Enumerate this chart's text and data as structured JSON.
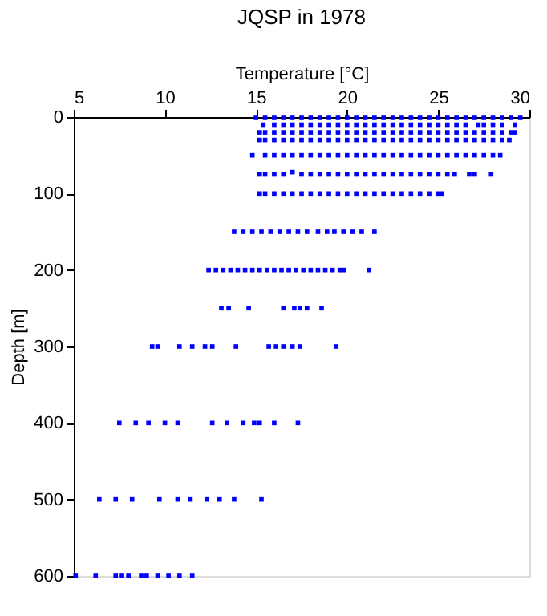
{
  "chart_data": {
    "type": "scatter",
    "title": "JQSP in 1978",
    "xlabel": "Temperature [°C]",
    "ylabel": "Depth [m]",
    "xlim": [
      5,
      30
    ],
    "xticks": [
      5,
      10,
      15,
      20,
      25,
      30
    ],
    "ylim": [
      600,
      0
    ],
    "yticks": [
      0,
      100,
      200,
      300,
      400,
      500,
      600
    ],
    "grid": false,
    "marker": "square",
    "series": [
      {
        "color": "#0000ff",
        "x": [
          15,
          15.5,
          16,
          16.5,
          17,
          17.5,
          18,
          18.5,
          19,
          19.5,
          20,
          20.5,
          21,
          21.5,
          22,
          22.5,
          23,
          23.5,
          24,
          24.5,
          25,
          25.5,
          26,
          26.5,
          27,
          27.5,
          28,
          28.5,
          29,
          29.5
        ],
        "values": [
          0,
          0,
          0,
          0,
          0,
          0,
          0,
          0,
          0,
          0,
          0,
          0,
          0,
          0,
          0,
          0,
          0,
          0,
          0,
          0,
          0,
          0,
          0,
          0,
          0,
          0,
          0,
          0,
          0,
          0
        ]
      },
      {
        "color": "#0000ff",
        "x": [
          15.4,
          16,
          16.5,
          17,
          17.5,
          18,
          18.5,
          19,
          19.5,
          20,
          20.5,
          21,
          21.5,
          22,
          22.5,
          23,
          23.5,
          24,
          24.5,
          25,
          25.5,
          26,
          26.5,
          27.2,
          27.5,
          28,
          28.5,
          29.2
        ],
        "values": [
          10,
          10,
          10,
          10,
          10,
          10,
          10,
          10,
          10,
          10,
          10,
          10,
          10,
          10,
          10,
          10,
          10,
          10,
          10,
          10,
          10,
          10,
          10,
          10,
          10,
          10,
          10,
          10
        ]
      },
      {
        "color": "#0000ff",
        "x": [
          15.2,
          15.5,
          16,
          16.5,
          17,
          17.5,
          18,
          18.5,
          19,
          19.5,
          20,
          20.5,
          21,
          21.5,
          22,
          22.5,
          23,
          23.5,
          24,
          24.5,
          25,
          25.5,
          26,
          26.5,
          27,
          27.5,
          28,
          28.5,
          29,
          29.2
        ],
        "values": [
          20,
          20,
          20,
          20,
          20,
          20,
          20,
          20,
          20,
          20,
          20,
          20,
          20,
          20,
          20,
          20,
          20,
          20,
          20,
          20,
          20,
          20,
          20,
          20,
          20,
          20,
          20,
          20,
          20,
          20
        ]
      },
      {
        "color": "#0000ff",
        "x": [
          15.2,
          15.5,
          16,
          16.5,
          17,
          17.5,
          18,
          18.5,
          19,
          19.5,
          20,
          20.5,
          21,
          21.5,
          22,
          22.5,
          23,
          23.5,
          24,
          24.5,
          25,
          25.5,
          26,
          26.5,
          27,
          27.5,
          28,
          28.5,
          28.9
        ],
        "values": [
          30,
          30,
          30,
          30,
          30,
          30,
          30,
          30,
          30,
          30,
          30,
          30,
          30,
          30,
          30,
          30,
          30,
          30,
          30,
          30,
          30,
          30,
          30,
          30,
          30,
          30,
          30,
          30,
          30
        ]
      },
      {
        "color": "#0000ff",
        "x": [
          14.8,
          15.5,
          16,
          16.5,
          17,
          17.5,
          18,
          18.5,
          19,
          19.5,
          20,
          20.5,
          21,
          21.5,
          22,
          22.5,
          23,
          23.5,
          24,
          24.5,
          25,
          25.5,
          26,
          26.5,
          27,
          27.5,
          28,
          28.4
        ],
        "values": [
          50,
          50,
          50,
          50,
          50,
          50,
          50,
          50,
          50,
          50,
          50,
          50,
          50,
          50,
          50,
          50,
          50,
          50,
          50,
          50,
          50,
          50,
          50,
          50,
          50,
          50,
          50,
          50
        ]
      },
      {
        "color": "#0000ff",
        "x": [
          15.2,
          15.5,
          16,
          16.5,
          17.5,
          18,
          18.5,
          19,
          19.5,
          20,
          20.5,
          21,
          21.5,
          22,
          22.5,
          23,
          23.5,
          24,
          24.5,
          25,
          25.5,
          25.9,
          26.7,
          27.0,
          27.9,
          17.0
        ],
        "values": [
          75,
          75,
          75,
          75,
          75,
          75,
          75,
          75,
          75,
          75,
          75,
          75,
          75,
          75,
          75,
          75,
          75,
          75,
          75,
          75,
          75,
          75,
          75,
          75,
          75,
          72
        ]
      },
      {
        "color": "#0000ff",
        "x": [
          15.2,
          15.5,
          16,
          16.5,
          17,
          17.5,
          18,
          18.5,
          19,
          19.5,
          20,
          20.5,
          21,
          21.5,
          22,
          22.5,
          23,
          23.5,
          24,
          24.5,
          25,
          25.2
        ],
        "values": [
          100,
          100,
          100,
          100,
          100,
          100,
          100,
          100,
          100,
          100,
          100,
          100,
          100,
          100,
          100,
          100,
          100,
          100,
          100,
          100,
          100,
          100
        ]
      },
      {
        "color": "#0000ff",
        "x": [
          13.8,
          14.3,
          14.8,
          15.3,
          15.8,
          16.3,
          16.8,
          17.3,
          17.8,
          18.4,
          18.9,
          19.3,
          19.8,
          20.3,
          20.8,
          21.5
        ],
        "values": [
          150,
          150,
          150,
          150,
          150,
          150,
          150,
          150,
          150,
          150,
          150,
          150,
          150,
          150,
          150,
          150
        ]
      },
      {
        "color": "#0000ff",
        "x": [
          12.4,
          12.8,
          13.2,
          13.6,
          14.0,
          14.4,
          14.8,
          15.2,
          15.6,
          16.0,
          16.4,
          16.8,
          17.2,
          17.6,
          18.0,
          18.4,
          18.8,
          19.2,
          19.6,
          19.8,
          21.2
        ],
        "values": [
          200,
          200,
          200,
          200,
          200,
          200,
          200,
          200,
          200,
          200,
          200,
          200,
          200,
          200,
          200,
          200,
          200,
          200,
          200,
          200,
          200
        ]
      },
      {
        "color": "#0000ff",
        "x": [
          13.1,
          13.5,
          14.6,
          16.5,
          17.1,
          17.4,
          17.8,
          18.6
        ],
        "values": [
          250,
          250,
          250,
          250,
          250,
          250,
          250,
          250
        ]
      },
      {
        "color": "#0000ff",
        "x": [
          9.3,
          9.6,
          10.8,
          11.5,
          12.2,
          12.6,
          13.9,
          15.7,
          16.1,
          16.5,
          17.0,
          17.4,
          19.4
        ],
        "values": [
          300,
          300,
          300,
          300,
          300,
          300,
          300,
          300,
          300,
          300,
          300,
          300,
          300
        ]
      },
      {
        "color": "#0000ff",
        "x": [
          7.5,
          8.4,
          9.1,
          10.0,
          10.7,
          12.6,
          13.4,
          14.3,
          14.9,
          15.2,
          16.0,
          17.3
        ],
        "values": [
          400,
          400,
          400,
          400,
          400,
          400,
          400,
          400,
          400,
          400,
          400,
          400
        ]
      },
      {
        "color": "#0000ff",
        "x": [
          6.4,
          7.3,
          8.2,
          9.7,
          10.7,
          11.4,
          12.3,
          13.0,
          13.8,
          15.3
        ],
        "values": [
          500,
          500,
          500,
          500,
          500,
          500,
          500,
          500,
          500,
          500
        ]
      },
      {
        "color": "#0000ff",
        "x": [
          5.1,
          6.2,
          7.3,
          7.6,
          8.0,
          8.7,
          9.0,
          9.6,
          10.2,
          10.8,
          11.5
        ],
        "values": [
          600,
          600,
          600,
          600,
          600,
          600,
          600,
          600,
          600,
          600,
          600
        ]
      }
    ]
  }
}
